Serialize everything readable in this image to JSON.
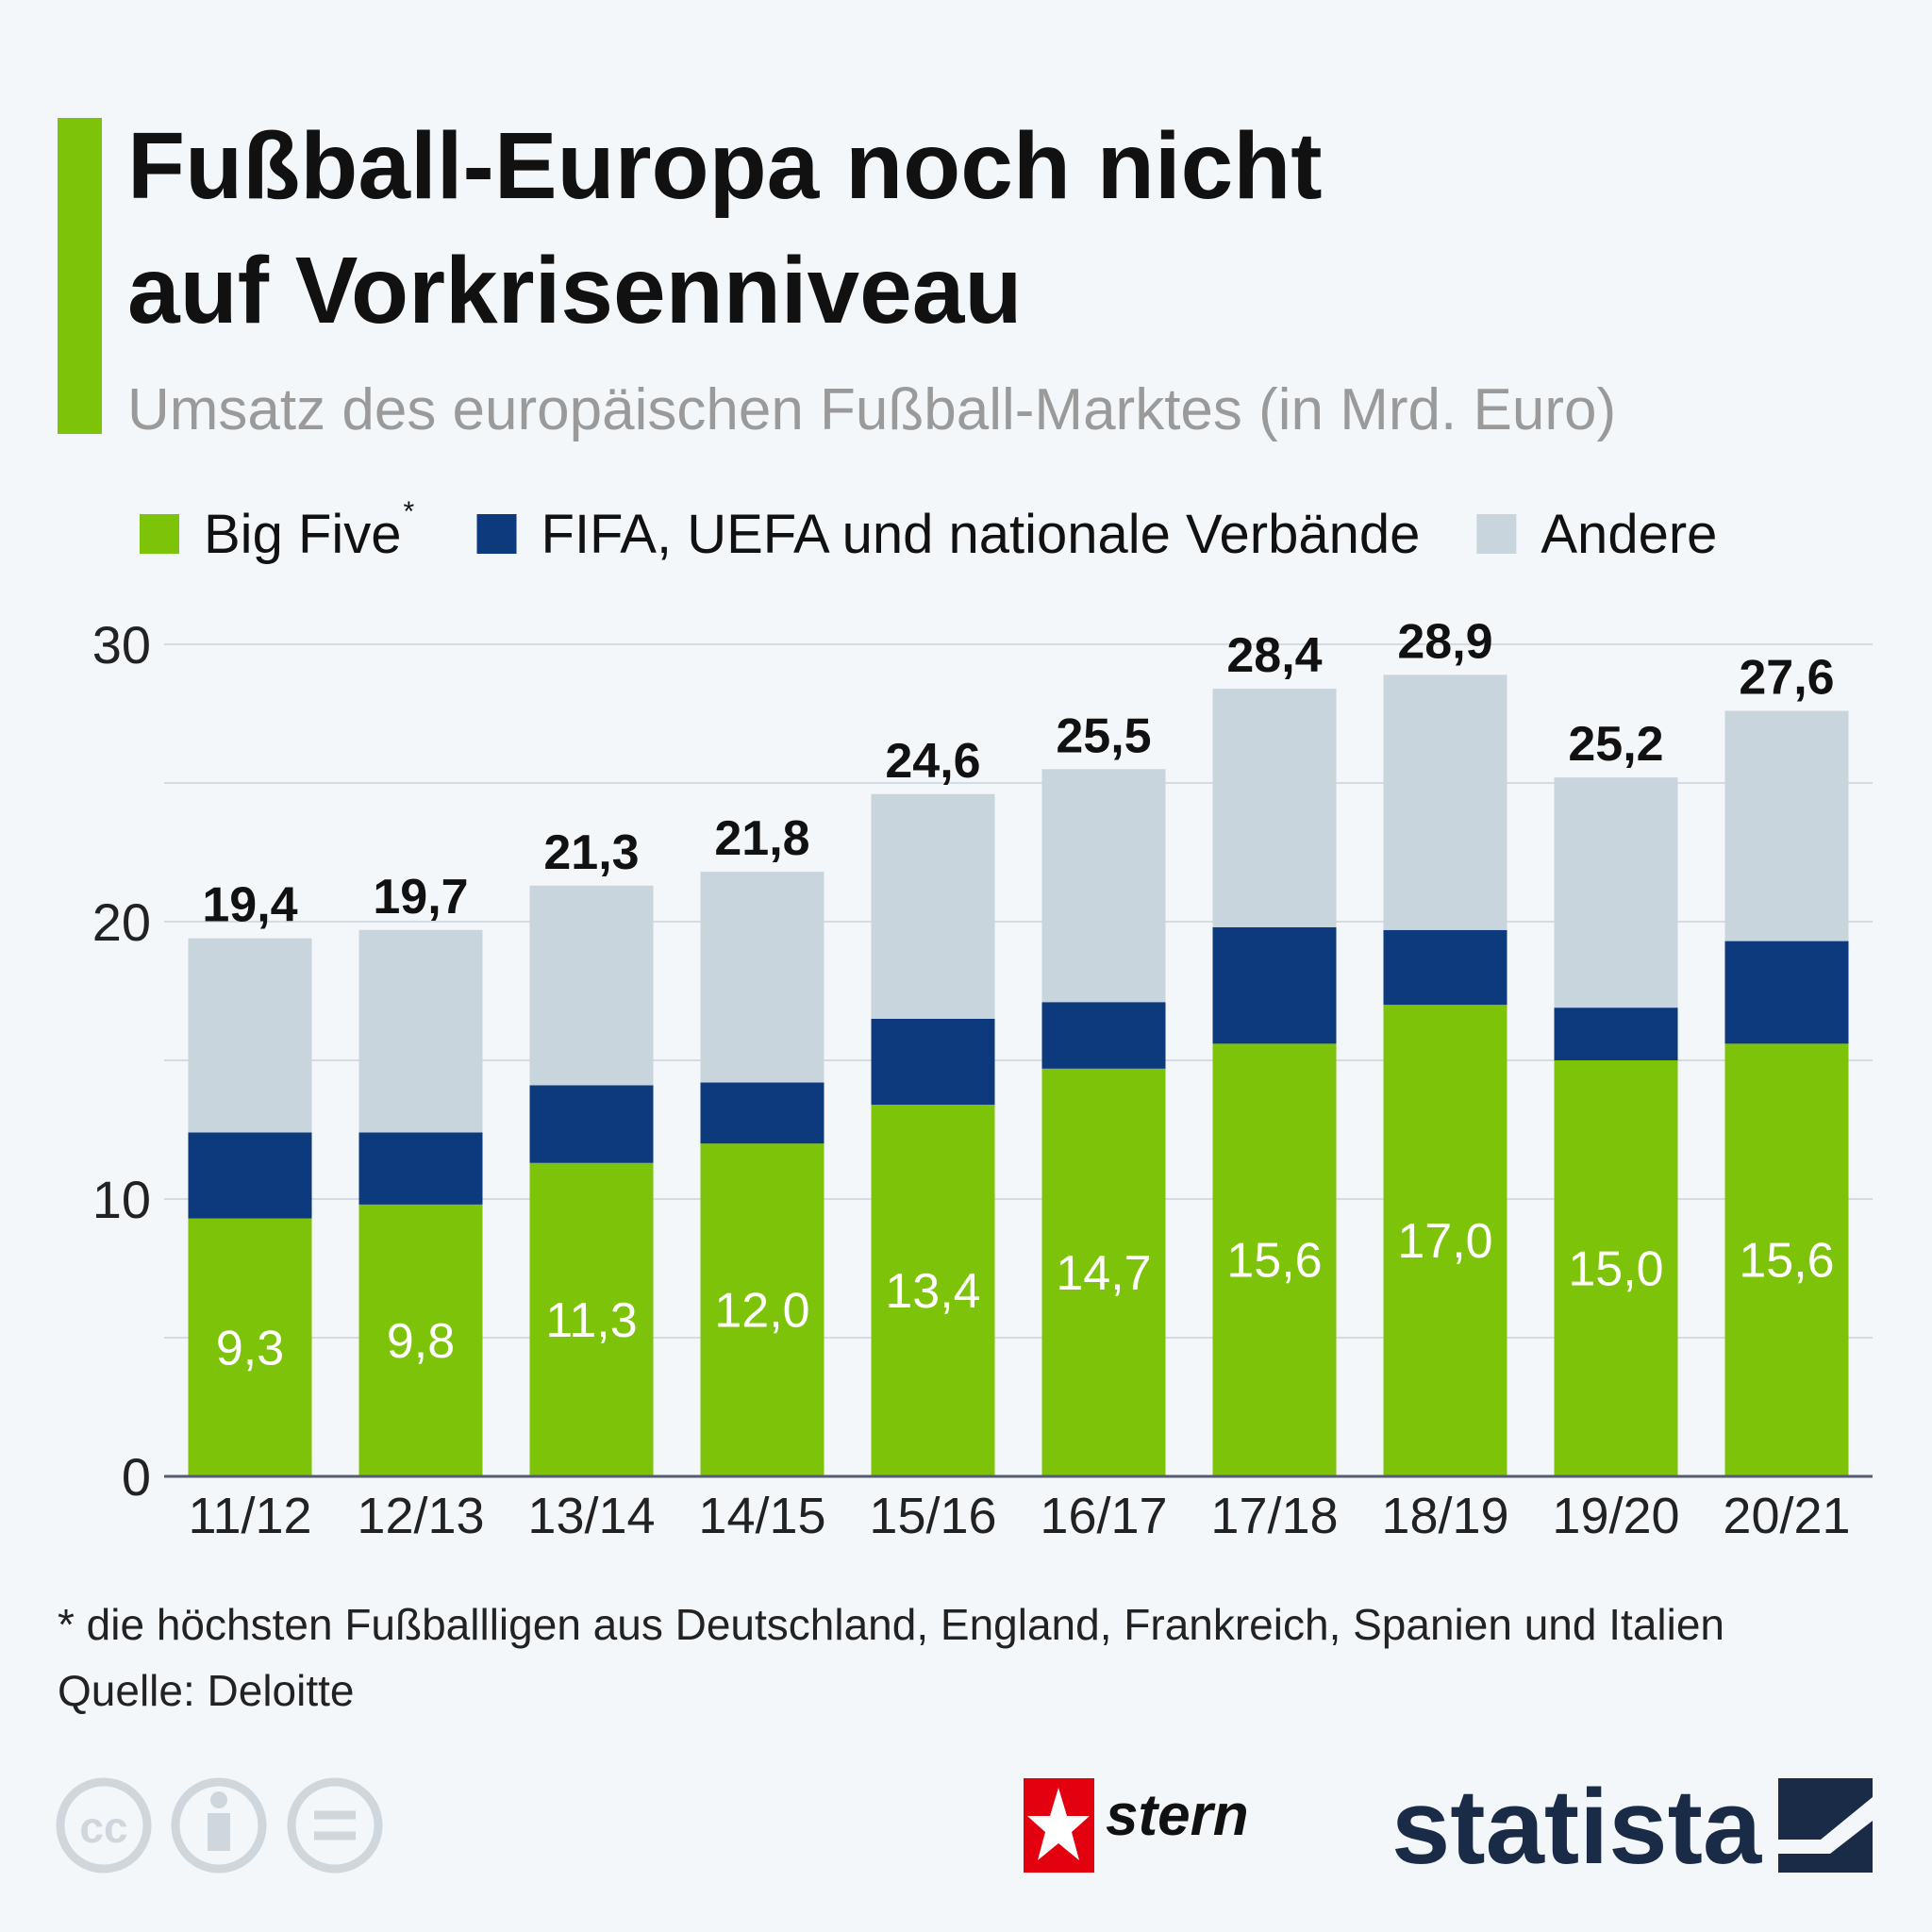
{
  "chart_data": {
    "type": "stacked_bar",
    "title": [
      "Fußball-Europa noch nicht",
      "auf Vorkrisenniveau"
    ],
    "subtitle": "Umsatz des europäischen Fußball-Marktes (in Mrd. Euro)",
    "categories": [
      "11/12",
      "12/13",
      "13/14",
      "14/15",
      "15/16",
      "16/17",
      "17/18",
      "18/19",
      "19/20",
      "20/21"
    ],
    "series": [
      {
        "name": "Big Five",
        "color": "#7dc30a",
        "values": [
          9.3,
          9.8,
          11.3,
          12.0,
          13.4,
          14.7,
          15.6,
          17.0,
          15.0,
          15.6
        ],
        "value_labels": [
          "9,3",
          "9,8",
          "11,3",
          "12,0",
          "13,4",
          "14,7",
          "15,6",
          "17,0",
          "15,0",
          "15,6"
        ]
      },
      {
        "name": "FIFA, UEFA und nationale Verbände",
        "color": "#0c3a7d",
        "values": [
          3.1,
          2.6,
          2.8,
          2.2,
          3.1,
          2.4,
          4.2,
          2.7,
          1.9,
          3.7
        ]
      },
      {
        "name": "Andere",
        "color": "#c8d5dc",
        "values": [
          7.0,
          7.3,
          7.2,
          7.6,
          8.1,
          8.4,
          8.6,
          9.2,
          8.3,
          8.3
        ]
      }
    ],
    "legend_note": "*",
    "totals": {
      "values": [
        19.4,
        19.7,
        21.3,
        21.8,
        24.6,
        25.5,
        28.4,
        28.9,
        25.2,
        27.6
      ],
      "value_labels": [
        "19,4",
        "19,7",
        "21,3",
        "21,8",
        "24,6",
        "25,5",
        "28,4",
        "28,9",
        "25,2",
        "27,6"
      ]
    },
    "ylim": [
      0,
      30
    ],
    "yticks": [
      0,
      10,
      20,
      30
    ],
    "minor_gridlines": [
      5,
      15,
      25
    ],
    "grid": true
  },
  "footnote": "* die höchsten Fußballligen aus Deutschland, England, Frankreich, Spanien und Italien",
  "source": "Quelle: Deloitte",
  "brands": [
    "stern",
    "statista"
  ]
}
